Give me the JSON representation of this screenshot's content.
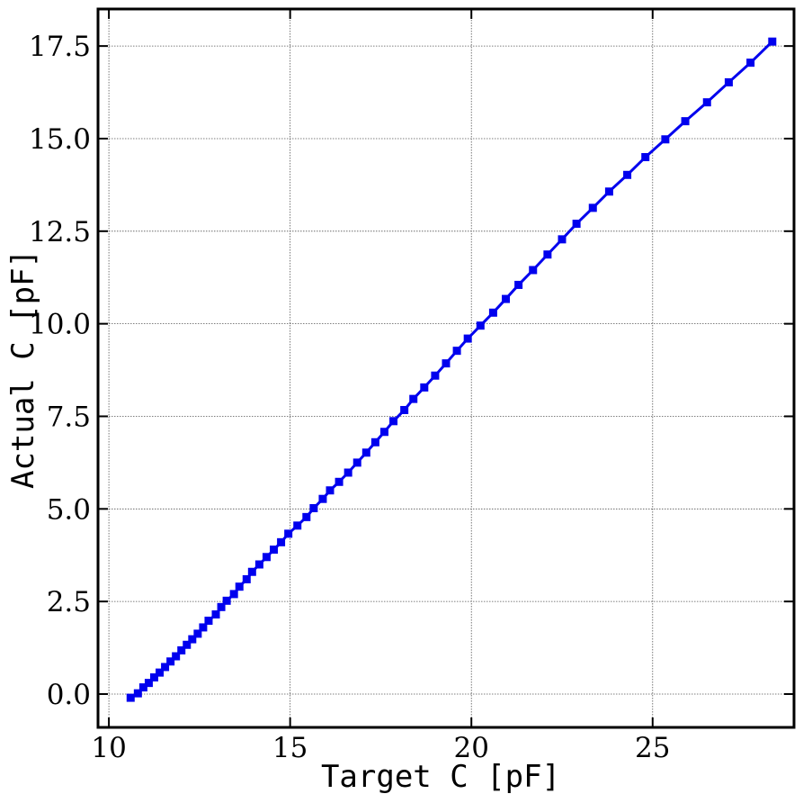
{
  "chart_data": {
    "type": "line",
    "title": "",
    "xlabel": "Target C [pF]",
    "ylabel": "Actual C [pF]",
    "xlim": [
      9.7,
      28.9
    ],
    "ylim": [
      -0.9,
      18.5
    ],
    "x_ticks": [
      10,
      15,
      20,
      25
    ],
    "y_ticks": [
      0.0,
      2.5,
      5.0,
      7.5,
      10.0,
      12.5,
      15.0,
      17.5
    ],
    "x_tick_labels": [
      "10",
      "15",
      "20",
      "25"
    ],
    "y_tick_labels": [
      "0.0",
      "2.5",
      "5.0",
      "7.5",
      "10.0",
      "12.5",
      "15.0",
      "17.5"
    ],
    "grid": true,
    "legend": "none",
    "series": [
      {
        "color": "#0000ee",
        "marker": "square",
        "points": [
          [
            10.6,
            -0.1
          ],
          [
            10.8,
            0.02
          ],
          [
            10.95,
            0.18
          ],
          [
            11.1,
            0.3
          ],
          [
            11.25,
            0.45
          ],
          [
            11.4,
            0.58
          ],
          [
            11.55,
            0.73
          ],
          [
            11.7,
            0.88
          ],
          [
            11.85,
            1.02
          ],
          [
            12.0,
            1.18
          ],
          [
            12.15,
            1.33
          ],
          [
            12.3,
            1.48
          ],
          [
            12.45,
            1.63
          ],
          [
            12.6,
            1.8
          ],
          [
            12.75,
            1.98
          ],
          [
            12.95,
            2.15
          ],
          [
            13.1,
            2.35
          ],
          [
            13.25,
            2.52
          ],
          [
            13.45,
            2.7
          ],
          [
            13.6,
            2.9
          ],
          [
            13.8,
            3.1
          ],
          [
            13.95,
            3.3
          ],
          [
            14.15,
            3.5
          ],
          [
            14.35,
            3.7
          ],
          [
            14.55,
            3.9
          ],
          [
            14.75,
            4.1
          ],
          [
            14.95,
            4.33
          ],
          [
            15.2,
            4.55
          ],
          [
            15.45,
            4.78
          ],
          [
            15.65,
            5.02
          ],
          [
            15.9,
            5.27
          ],
          [
            16.1,
            5.5
          ],
          [
            16.35,
            5.73
          ],
          [
            16.6,
            5.98
          ],
          [
            16.85,
            6.25
          ],
          [
            17.1,
            6.52
          ],
          [
            17.35,
            6.8
          ],
          [
            17.6,
            7.08
          ],
          [
            17.85,
            7.37
          ],
          [
            18.15,
            7.67
          ],
          [
            18.4,
            7.97
          ],
          [
            18.7,
            8.28
          ],
          [
            19.0,
            8.6
          ],
          [
            19.3,
            8.93
          ],
          [
            19.6,
            9.27
          ],
          [
            19.9,
            9.6
          ],
          [
            20.25,
            9.95
          ],
          [
            20.6,
            10.3
          ],
          [
            20.95,
            10.67
          ],
          [
            21.3,
            11.05
          ],
          [
            21.7,
            11.45
          ],
          [
            22.1,
            11.87
          ],
          [
            22.5,
            12.28
          ],
          [
            22.9,
            12.7
          ],
          [
            23.35,
            13.13
          ],
          [
            23.8,
            13.57
          ],
          [
            24.3,
            14.02
          ],
          [
            24.8,
            14.5
          ],
          [
            25.35,
            14.98
          ],
          [
            25.9,
            15.47
          ],
          [
            26.5,
            15.98
          ],
          [
            27.1,
            16.52
          ],
          [
            27.7,
            17.05
          ],
          [
            28.3,
            17.62
          ]
        ]
      }
    ]
  }
}
